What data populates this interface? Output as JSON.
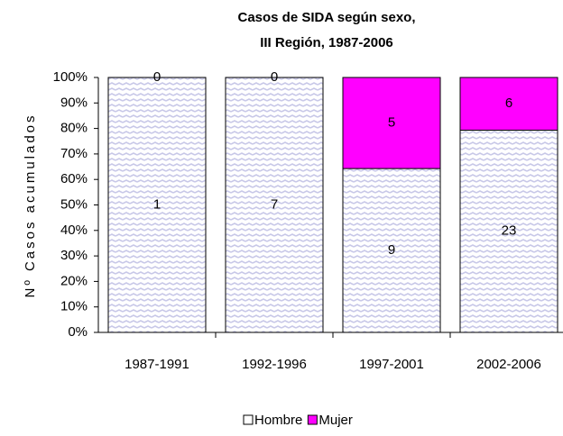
{
  "chart_data": {
    "type": "percent_stacked_bar",
    "title_lines": [
      "Casos de SIDA según sexo,",
      "III Región, 1987-2006"
    ],
    "y_label": "Nº Casos acumulados",
    "categories": [
      "1987-1991",
      "1992-1996",
      "1997-2001",
      "2002-2006"
    ],
    "series": [
      {
        "name": "Hombre",
        "color": "#c8c8e8",
        "values": [
          1,
          7,
          9,
          23
        ]
      },
      {
        "name": "Mujer",
        "color": "#ff00ff",
        "values": [
          0,
          0,
          5,
          6
        ]
      }
    ],
    "ylim": [
      0,
      100
    ],
    "yticks": [
      {
        "value": 0,
        "label": "0%"
      },
      {
        "value": 10,
        "label": "10%"
      },
      {
        "value": 20,
        "label": "20%"
      },
      {
        "value": 30,
        "label": "30%"
      },
      {
        "value": 40,
        "label": "40%"
      },
      {
        "value": 50,
        "label": "50%"
      },
      {
        "value": 60,
        "label": "60%"
      },
      {
        "value": 70,
        "label": "70%"
      },
      {
        "value": 80,
        "label": "80%"
      },
      {
        "value": 90,
        "label": "90%"
      },
      {
        "value": 100,
        "label": "100%"
      }
    ],
    "legend": "bottom"
  }
}
